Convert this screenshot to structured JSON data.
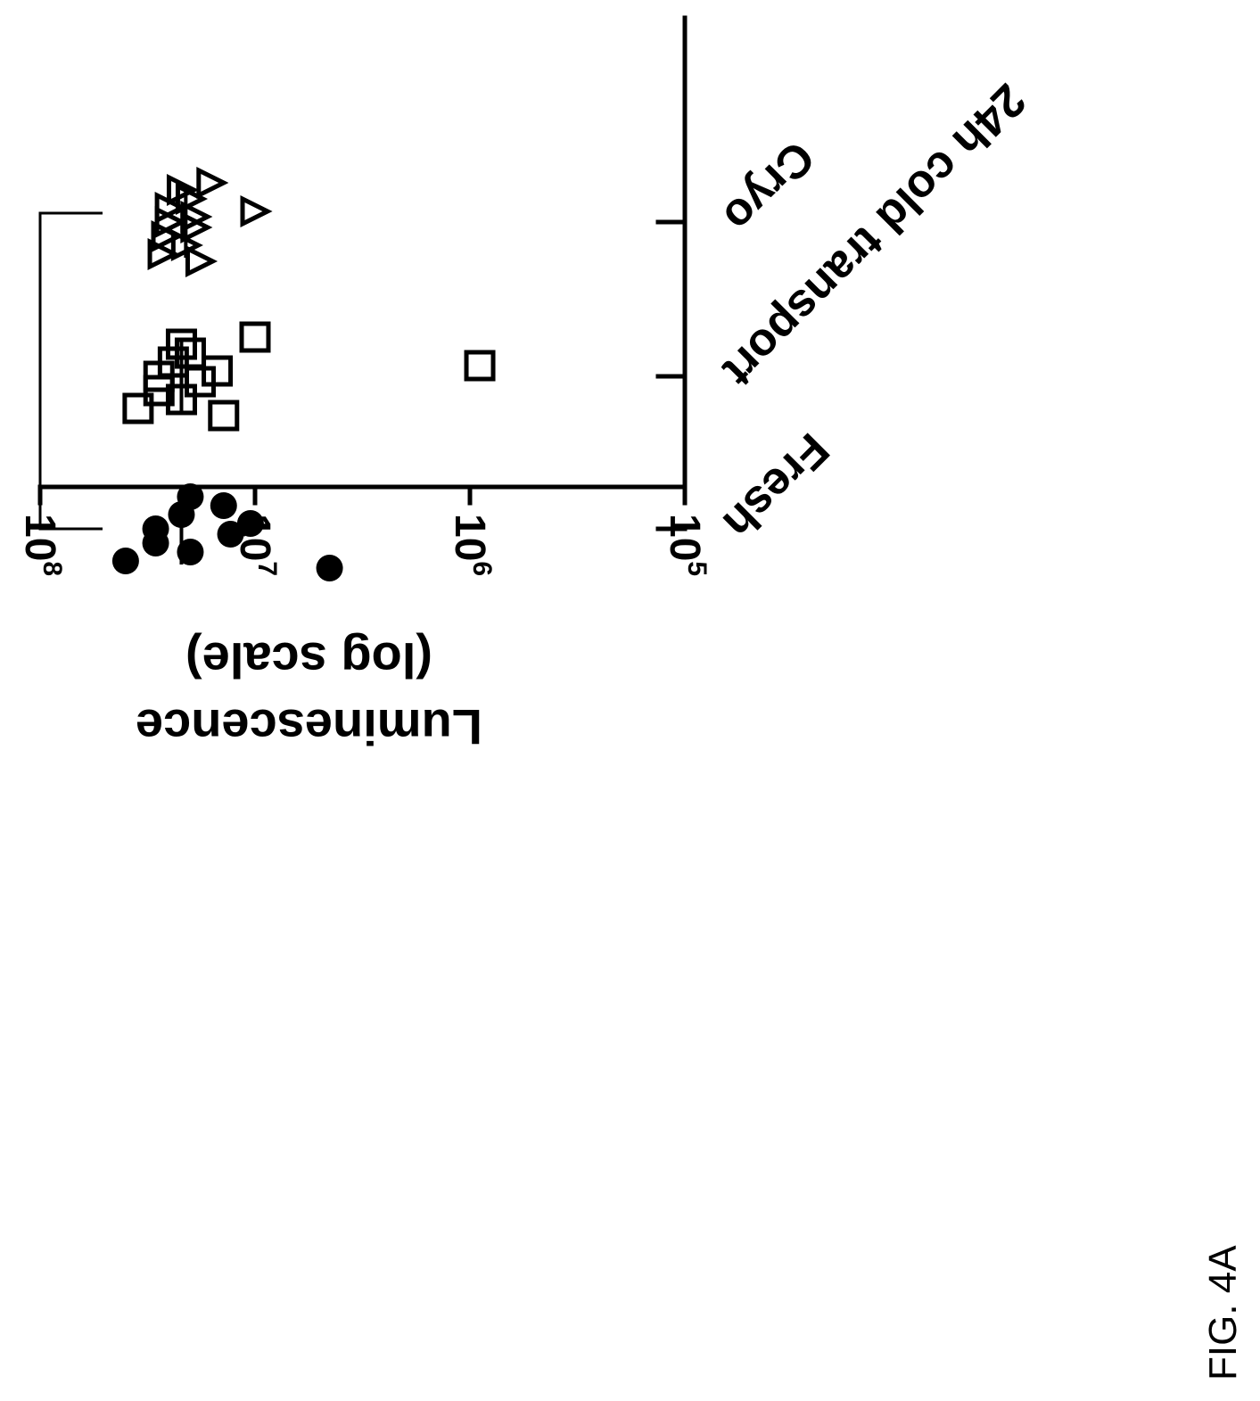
{
  "chart_data": {
    "type": "scatter",
    "orientation": "rotated-180",
    "scale": "log",
    "ylabel": "Luminescence (log scale)",
    "ylim": [
      100000,
      100000000
    ],
    "y_ticks": [
      {
        "base": "10",
        "exp": "5"
      },
      {
        "base": "10",
        "exp": "6"
      },
      {
        "base": "10",
        "exp": "7"
      },
      {
        "base": "10",
        "exp": "8"
      }
    ],
    "categories": [
      "Fresh",
      "24h cold transport",
      "Cryo"
    ],
    "series": [
      {
        "marker": "filled-circle",
        "category": "Fresh",
        "median": 22000000,
        "values": [
          40000000,
          29000000,
          29000000,
          22000000,
          20000000,
          20000000,
          14000000,
          13000000,
          10500000,
          4500000
        ]
      },
      {
        "marker": "open-square",
        "category": "24h cold transport",
        "median": 22000000,
        "values": [
          35000000,
          28000000,
          28000000,
          24000000,
          22000000,
          22000000,
          20000000,
          18000000,
          15000000,
          14000000,
          10000000,
          900000
        ]
      },
      {
        "marker": "open-triangle",
        "category": "Cryo",
        "median": 21000000,
        "values": [
          27000000,
          26000000,
          25000000,
          25000000,
          22000000,
          21000000,
          20000000,
          19000000,
          19000000,
          18000000,
          16000000,
          10000000
        ]
      }
    ],
    "significance_bracket": {
      "from": "Fresh",
      "to": "Cryo",
      "label": ""
    }
  },
  "figure": {
    "label": "FIG. 4A"
  }
}
